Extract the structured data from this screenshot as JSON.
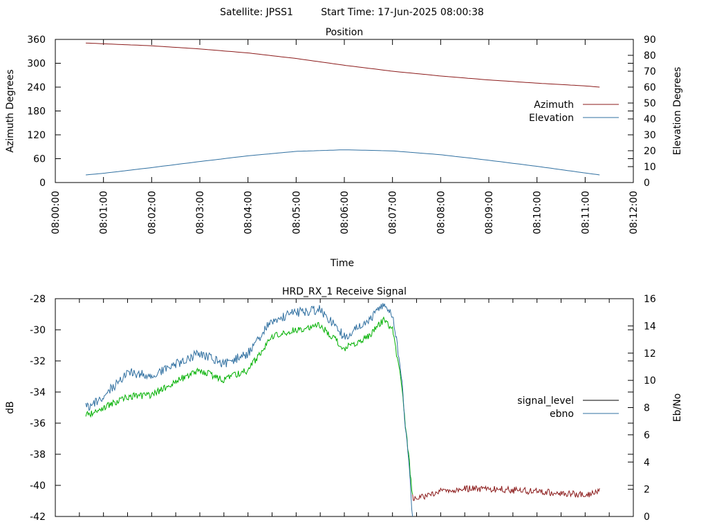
{
  "header": {
    "satellite": "Satellite: JPSS1",
    "start_time": "Start Time: 17-Jun-2025 08:00:38"
  },
  "chart_data": [
    {
      "type": "line",
      "title": "Position",
      "xlabel": "Time",
      "ylabel": "Azimuth Degrees",
      "y2label": "Elevation Degrees",
      "xlim": [
        "08:00:00",
        "08:12:00"
      ],
      "ylim": [
        0,
        360
      ],
      "y2lim": [
        0,
        90
      ],
      "x_ticks": [
        "08:00:00",
        "08:01:00",
        "08:02:00",
        "08:03:00",
        "08:04:00",
        "08:05:00",
        "08:06:00",
        "08:07:00",
        "08:08:00",
        "08:09:00",
        "08:10:00",
        "08:11:00",
        "08:12:00"
      ],
      "y_ticks": [
        "0",
        "60",
        "120",
        "180",
        "240",
        "300",
        "360"
      ],
      "y2_ticks": [
        "0",
        "10",
        "20",
        "30",
        "40",
        "50",
        "60",
        "70",
        "80",
        "90"
      ],
      "grid": false,
      "legend_position": "right-middle",
      "series": [
        {
          "name": "Azimuth",
          "axis": "left",
          "color": "#8b1a1a",
          "x": [
            "08:00:38",
            "08:01:00",
            "08:02:00",
            "08:03:00",
            "08:04:00",
            "08:05:00",
            "08:06:00",
            "08:07:00",
            "08:08:00",
            "08:09:00",
            "08:10:00",
            "08:11:00",
            "08:11:18"
          ],
          "y": [
            351,
            349,
            344,
            336,
            326,
            312,
            295,
            280,
            268,
            258,
            250,
            243,
            240
          ]
        },
        {
          "name": "Elevation",
          "axis": "right",
          "color": "#2f6fa0",
          "x": [
            "08:00:38",
            "08:01:00",
            "08:02:00",
            "08:03:00",
            "08:04:00",
            "08:05:00",
            "08:06:00",
            "08:07:00",
            "08:08:00",
            "08:09:00",
            "08:10:00",
            "08:11:00",
            "08:11:18"
          ],
          "y": [
            4.8,
            5.8,
            9.4,
            13.2,
            16.8,
            19.6,
            20.6,
            19.9,
            17.5,
            14.0,
            10.2,
            6.0,
            4.8
          ]
        }
      ]
    },
    {
      "type": "line",
      "title": "HRD_RX_1 Receive Signal",
      "ylabel": "dB",
      "y2label": "Eb/No",
      "xlim": [
        "08:00:00",
        "08:12:00"
      ],
      "ylim": [
        -42,
        -28
      ],
      "y2lim": [
        0,
        16
      ],
      "y_ticks": [
        "-42",
        "-40",
        "-38",
        "-36",
        "-34",
        "-32",
        "-30",
        "-28"
      ],
      "y2_ticks": [
        "0",
        "2",
        "4",
        "6",
        "8",
        "10",
        "12",
        "14",
        "16"
      ],
      "grid": false,
      "legend_position": "right-middle",
      "series": [
        {
          "name": "signal_level",
          "axis": "left",
          "color": "#000000",
          "line_colors": [
            "#00b000",
            "#8b1a1a"
          ],
          "x": [
            "08:00:38",
            "08:01:00",
            "08:01:30",
            "08:02:00",
            "08:02:30",
            "08:03:00",
            "08:03:30",
            "08:04:00",
            "08:04:30",
            "08:05:00",
            "08:05:30",
            "08:06:00",
            "08:06:30",
            "08:06:50",
            "08:07:00",
            "08:07:10",
            "08:07:20",
            "08:07:25",
            "08:07:40",
            "08:08:00",
            "08:08:30",
            "08:09:00",
            "08:09:30",
            "08:10:00",
            "08:10:30",
            "08:11:00",
            "08:11:18"
          ],
          "y": [
            -35.5,
            -35.0,
            -34.3,
            -34.2,
            -33.3,
            -32.6,
            -33.2,
            -32.6,
            -30.4,
            -30.0,
            -29.7,
            -31.2,
            -30.4,
            -29.3,
            -30.0,
            -33.0,
            -38.0,
            -40.8,
            -40.7,
            -40.4,
            -40.2,
            -40.2,
            -40.3,
            -40.4,
            -40.5,
            -40.6,
            -40.4
          ]
        },
        {
          "name": "ebno",
          "axis": "right",
          "color": "#2f6fa0",
          "x": [
            "08:00:38",
            "08:01:00",
            "08:01:30",
            "08:02:00",
            "08:02:30",
            "08:03:00",
            "08:03:30",
            "08:04:00",
            "08:04:30",
            "08:05:00",
            "08:05:30",
            "08:06:00",
            "08:06:30",
            "08:06:50",
            "08:07:00",
            "08:07:10",
            "08:07:20",
            "08:07:25"
          ],
          "y": [
            8.0,
            8.8,
            10.6,
            10.3,
            11.2,
            12.0,
            11.2,
            12.0,
            14.4,
            15.0,
            15.2,
            13.2,
            14.4,
            15.6,
            14.8,
            11.0,
            4.0,
            0.0
          ]
        }
      ]
    }
  ]
}
